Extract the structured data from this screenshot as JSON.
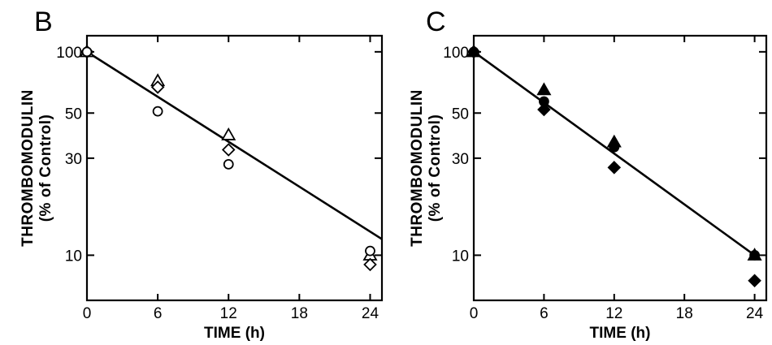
{
  "chart_data": [
    {
      "type": "scatter",
      "panel_label": "B",
      "xlabel": "TIME (h)",
      "ylabel": "THROMBOMODULIN",
      "ylabel_sub": "(% of Control)",
      "y_scale": "log",
      "xlim": [
        0,
        25
      ],
      "ylim": [
        6,
        120
      ],
      "x_ticks": [
        0,
        6,
        12,
        18,
        24
      ],
      "y_ticks": [
        10,
        30,
        50,
        100
      ],
      "grid": false,
      "series": [
        {
          "marker": "open-triangle",
          "points": [
            [
              0,
              100
            ],
            [
              6,
              72
            ],
            [
              12,
              39
            ],
            [
              24,
              10
            ]
          ]
        },
        {
          "marker": "open-diamond",
          "points": [
            [
              0,
              100
            ],
            [
              6,
              67
            ],
            [
              12,
              33
            ],
            [
              24,
              9
            ]
          ]
        },
        {
          "marker": "open-circle",
          "points": [
            [
              0,
              100
            ],
            [
              6,
              51
            ],
            [
              12,
              28
            ],
            [
              24,
              10.5
            ]
          ]
        }
      ],
      "fit_line": {
        "x": [
          0,
          25
        ],
        "y": [
          100,
          12
        ]
      }
    },
    {
      "type": "scatter",
      "panel_label": "C",
      "xlabel": "TIME (h)",
      "ylabel": "THROMBOMODULIN",
      "ylabel_sub": "(% of Control)",
      "y_scale": "log",
      "xlim": [
        0,
        25
      ],
      "ylim": [
        6,
        120
      ],
      "x_ticks": [
        0,
        6,
        12,
        18,
        24
      ],
      "y_ticks": [
        10,
        30,
        50,
        100
      ],
      "grid": false,
      "series": [
        {
          "marker": "filled-triangle",
          "points": [
            [
              0,
              100
            ],
            [
              6,
              65
            ],
            [
              12,
              36
            ],
            [
              24,
              10
            ]
          ]
        },
        {
          "marker": "filled-circle",
          "points": [
            [
              0,
              100
            ],
            [
              6,
              57
            ],
            [
              12,
              34
            ],
            [
              24,
              10
            ]
          ]
        },
        {
          "marker": "filled-diamond",
          "points": [
            [
              0,
              100
            ],
            [
              6,
              52
            ],
            [
              12,
              27
            ],
            [
              24,
              7.5
            ]
          ]
        }
      ],
      "fit_line": {
        "x": [
          0,
          24
        ],
        "y": [
          100,
          10
        ]
      }
    }
  ]
}
